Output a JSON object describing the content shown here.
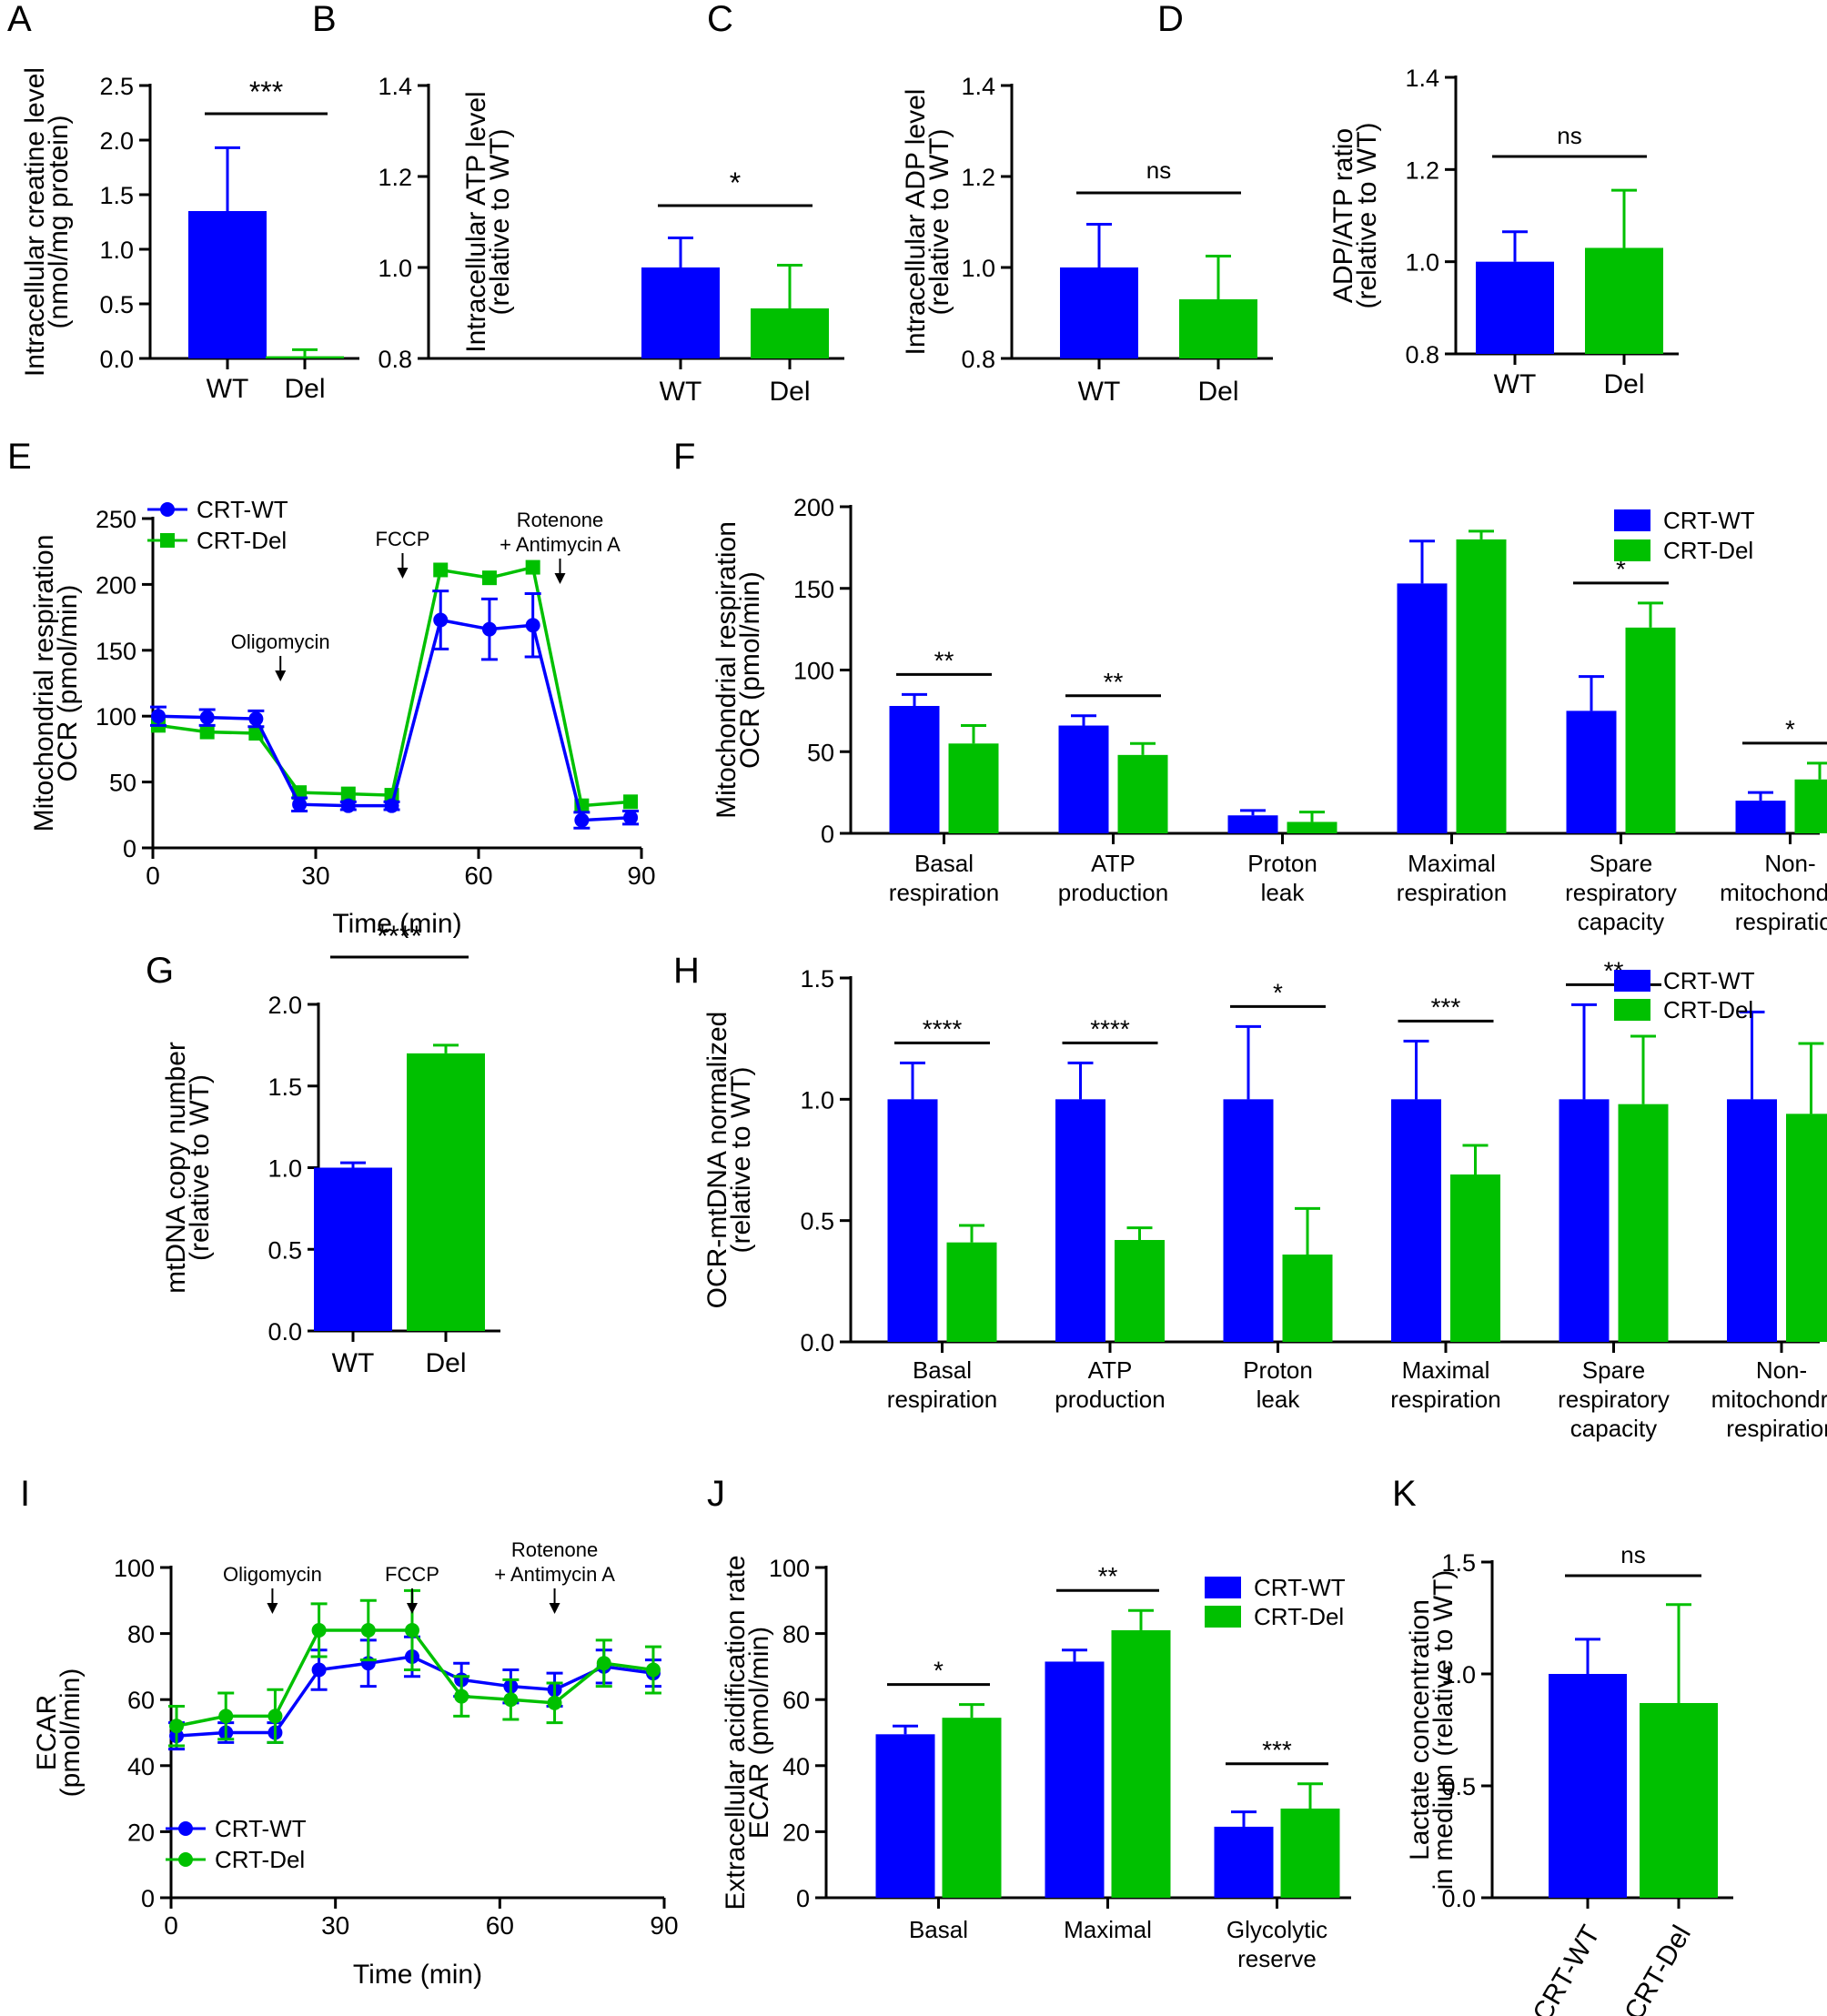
{
  "colors": {
    "wt": "#0000ff",
    "del": "#00c000",
    "axis": "#000000"
  },
  "chart_data": [
    {
      "id": "A",
      "type": "bar",
      "letter": "A",
      "ylabel": [
        "Intracellular creatine level",
        "(nmol/mg protein)"
      ],
      "categories": [
        "WT",
        "Del"
      ],
      "values": [
        1.35,
        0.02
      ],
      "errors": [
        0.58,
        0.06
      ],
      "ylim": [
        0,
        2.5
      ],
      "yticks": [
        "0.0",
        "0.5",
        "1.0",
        "1.5",
        "2.0",
        "2.5"
      ],
      "significance": [
        {
          "label": "***"
        }
      ]
    },
    {
      "id": "B",
      "type": "bar",
      "letter": "B",
      "ylabel": [
        "Intracellular ATP level",
        "(relative to WT)"
      ],
      "categories": [
        "WT",
        "Del"
      ],
      "values": [
        1.0,
        0.91
      ],
      "errors": [
        0.065,
        0.095
      ],
      "ylim": [
        0.8,
        1.4
      ],
      "yticks": [
        "0.8",
        "1.0",
        "1.2",
        "1.4"
      ],
      "significance": [
        {
          "label": "*"
        }
      ]
    },
    {
      "id": "C",
      "type": "bar",
      "letter": "C",
      "ylabel": [
        "Intracellular ADP level",
        "(relative to WT)"
      ],
      "categories": [
        "WT",
        "Del"
      ],
      "values": [
        1.0,
        0.93
      ],
      "errors": [
        0.095,
        0.095
      ],
      "ylim": [
        0.8,
        1.4
      ],
      "yticks": [
        "0.8",
        "1.0",
        "1.2",
        "1.4"
      ],
      "significance": [
        {
          "label": "ns"
        }
      ]
    },
    {
      "id": "D",
      "type": "bar",
      "letter": "D",
      "ylabel": [
        "ADP/ATP ratio",
        "(relative to WT)"
      ],
      "categories": [
        "WT",
        "Del"
      ],
      "values": [
        1.0,
        1.03
      ],
      "errors": [
        0.065,
        0.125
      ],
      "ylim": [
        0.8,
        1.4
      ],
      "yticks": [
        "0.8",
        "1.0",
        "1.2",
        "1.4"
      ],
      "significance": [
        {
          "label": "ns"
        }
      ]
    },
    {
      "id": "E",
      "type": "line",
      "letter": "E",
      "ylabel": [
        "Mitochondrial respiration",
        "OCR (pmol/min)"
      ],
      "xlabel": "Time (min)",
      "xlim": [
        0,
        90
      ],
      "ylim": [
        0,
        250
      ],
      "xticks": [
        "0",
        "30",
        "60",
        "90"
      ],
      "yticks": [
        "0",
        "50",
        "100",
        "150",
        "200",
        "250"
      ],
      "x": [
        1,
        10,
        19,
        27,
        36,
        44,
        53,
        62,
        70,
        79,
        88
      ],
      "series": [
        {
          "name": "CRT-WT",
          "marker": "circle",
          "values": [
            100,
            99,
            98,
            33,
            32,
            32,
            173,
            166,
            169,
            21,
            23
          ],
          "errors": [
            7,
            6,
            6,
            5,
            3,
            3,
            22,
            23,
            24,
            6,
            5
          ]
        },
        {
          "name": "CRT-Del",
          "marker": "square",
          "values": [
            93,
            88,
            87,
            42,
            41,
            40,
            211,
            205,
            213,
            32,
            35
          ],
          "errors": [
            0,
            0,
            0,
            0,
            0,
            0,
            0,
            0,
            0,
            0,
            0
          ]
        }
      ],
      "annotations": [
        {
          "lines": [
            "Oligomycin"
          ],
          "t": 23.5
        },
        {
          "lines": [
            "FCCP"
          ],
          "t": 46
        },
        {
          "lines": [
            "Rotenone",
            "+ Antimycin A"
          ],
          "t": 75
        }
      ]
    },
    {
      "id": "F",
      "type": "bar",
      "letter": "F",
      "ylabel": [
        "Mitochondrial respiration",
        "OCR (pmol/min)"
      ],
      "categories": [
        [
          "Basal",
          "respiration"
        ],
        [
          "ATP",
          "production"
        ],
        [
          "Proton",
          "leak"
        ],
        [
          "Maximal",
          "respiration"
        ],
        [
          "Spare",
          "respiratory",
          "capacity"
        ],
        [
          "Non-",
          "mitochondrial",
          "respiration"
        ]
      ],
      "ylim": [
        0,
        200
      ],
      "yticks": [
        "0",
        "50",
        "100",
        "150",
        "200"
      ],
      "series": [
        {
          "name": "CRT-WT",
          "values": [
            78,
            66,
            11,
            153,
            75,
            20
          ],
          "errors": [
            7,
            6,
            3,
            26,
            21,
            5
          ]
        },
        {
          "name": "CRT-Del",
          "values": [
            55,
            48,
            7,
            180,
            126,
            33
          ],
          "errors": [
            11,
            7,
            6,
            5,
            15,
            10
          ]
        }
      ],
      "significance": [
        {
          "group": 0,
          "label": "**"
        },
        {
          "group": 1,
          "label": "**"
        },
        {
          "group": 4,
          "label": "*"
        },
        {
          "group": 5,
          "label": "*"
        }
      ]
    },
    {
      "id": "G",
      "type": "bar",
      "letter": "G",
      "ylabel": [
        "mtDNA copy number",
        "(relative to WT)"
      ],
      "categories": [
        "WT",
        "Del"
      ],
      "values": [
        1.0,
        1.7
      ],
      "errors": [
        0.03,
        0.05
      ],
      "ylim": [
        0,
        2.0
      ],
      "yticks": [
        "0.0",
        "0.5",
        "1.0",
        "1.5",
        "2.0"
      ],
      "significance": [
        {
          "label": "****"
        }
      ]
    },
    {
      "id": "H",
      "type": "bar",
      "letter": "H",
      "ylabel": [
        "OCR-mtDNA normalized",
        "(relative to WT)"
      ],
      "categories": [
        [
          "Basal",
          "respiration"
        ],
        [
          "ATP",
          "production"
        ],
        [
          "Proton",
          "leak"
        ],
        [
          "Maximal",
          "respiration"
        ],
        [
          "Spare",
          "respiratory",
          "capacity"
        ],
        [
          "Non-",
          "mitochondrial",
          "respiration"
        ]
      ],
      "ylim": [
        0,
        1.5
      ],
      "yticks": [
        "0.0",
        "0.5",
        "1.0",
        "1.5"
      ],
      "series": [
        {
          "name": "CRT-WT",
          "values": [
            1.0,
            1.0,
            1.0,
            1.0,
            1.0,
            1.0
          ],
          "errors": [
            0.15,
            0.15,
            0.3,
            0.24,
            0.39,
            0.36
          ]
        },
        {
          "name": "CRT-Del",
          "values": [
            0.41,
            0.42,
            0.36,
            0.69,
            0.98,
            0.94
          ],
          "errors": [
            0.07,
            0.05,
            0.19,
            0.12,
            0.28,
            0.29
          ]
        }
      ],
      "significance": [
        {
          "group": 0,
          "label": "****"
        },
        {
          "group": 1,
          "label": "****"
        },
        {
          "group": 2,
          "label": "*"
        },
        {
          "group": 3,
          "label": "***"
        },
        {
          "group": 4,
          "label": "**"
        }
      ]
    },
    {
      "id": "I",
      "type": "line",
      "letter": "I",
      "ylabel": [
        "ECAR",
        "(pmol/min)"
      ],
      "xlabel": "Time (min)",
      "xlim": [
        0,
        90
      ],
      "ylim": [
        0,
        100
      ],
      "xticks": [
        "0",
        "30",
        "60",
        "90"
      ],
      "yticks": [
        "0",
        "20",
        "40",
        "60",
        "80",
        "100"
      ],
      "x": [
        1,
        10,
        19,
        27,
        36,
        44,
        53,
        62,
        70,
        79,
        88
      ],
      "series": [
        {
          "name": "CRT-WT",
          "marker": "circle",
          "values": [
            49,
            50,
            50,
            69,
            71,
            73,
            66,
            64,
            63,
            70,
            68
          ],
          "errors": [
            4,
            3,
            3,
            6,
            7,
            6,
            5,
            5,
            5,
            5,
            4
          ]
        },
        {
          "name": "CRT-Del",
          "marker": "circle",
          "values": [
            52,
            55,
            55,
            81,
            81,
            81,
            61,
            60,
            59,
            71,
            69
          ],
          "errors": [
            6,
            7,
            8,
            8,
            9,
            12,
            6,
            6,
            6,
            7,
            7
          ]
        }
      ],
      "annotations": [
        {
          "lines": [
            "Oligomycin"
          ],
          "t": 18.5
        },
        {
          "lines": [
            "FCCP"
          ],
          "t": 44
        },
        {
          "lines": [
            "Rotenone",
            "+ Antimycin A"
          ],
          "t": 70
        }
      ]
    },
    {
      "id": "J",
      "type": "bar",
      "letter": "J",
      "ylabel": [
        "Extracellular acidification rate",
        "ECAR (pmol/min)"
      ],
      "categories": [
        [
          "Basal"
        ],
        [
          "Maximal"
        ],
        [
          "Glycolytic",
          "reserve"
        ]
      ],
      "ylim": [
        0,
        100
      ],
      "yticks": [
        "0",
        "20",
        "40",
        "60",
        "80",
        "100"
      ],
      "series": [
        {
          "name": "CRT-WT",
          "values": [
            49.5,
            71.5,
            21.5
          ],
          "errors": [
            2.5,
            3.5,
            4.5
          ]
        },
        {
          "name": "CRT-Del",
          "values": [
            54.5,
            81,
            27
          ],
          "errors": [
            4,
            6,
            7.5
          ]
        }
      ],
      "significance": [
        {
          "group": 0,
          "label": "*"
        },
        {
          "group": 1,
          "label": "**"
        },
        {
          "group": 2,
          "label": "***"
        }
      ]
    },
    {
      "id": "K",
      "type": "bar",
      "letter": "K",
      "ylabel": [
        "Lactate concentration",
        "in medium (relative to WT)"
      ],
      "categories": [
        "CRT-WT",
        "CRT-Del"
      ],
      "values": [
        1.0,
        0.87
      ],
      "errors": [
        0.155,
        0.44
      ],
      "ylim": [
        0,
        1.5
      ],
      "yticks": [
        "0.0",
        "0.5",
        "1.0",
        "1.5"
      ],
      "significance": [
        {
          "label": "ns"
        }
      ]
    }
  ]
}
